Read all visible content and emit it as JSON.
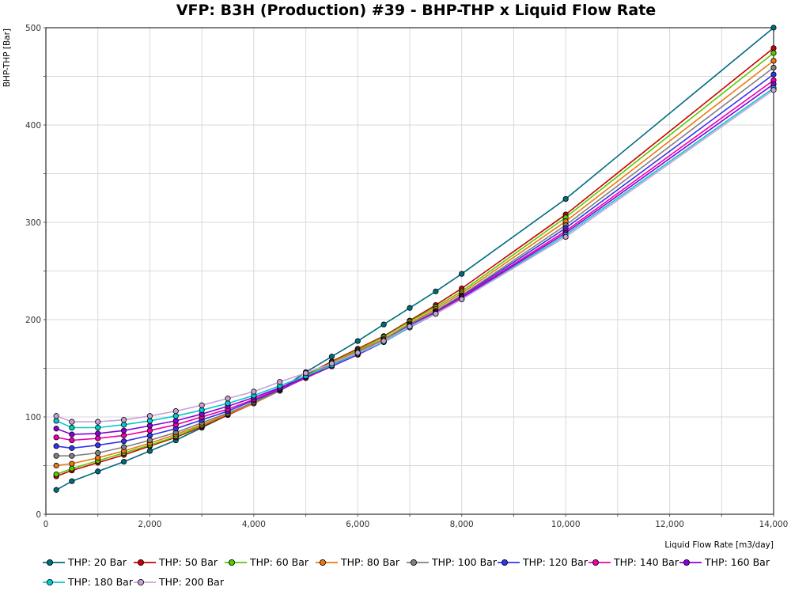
{
  "chart_data": {
    "type": "line",
    "title": "VFP: B3H (Production) #39 - BHP-THP x Liquid Flow Rate",
    "xlabel": "Liquid Flow Rate [m3/day]",
    "ylabel": "BHP-THP [Bar]",
    "xlim": [
      0,
      14000
    ],
    "ylim": [
      0,
      500
    ],
    "xticks": [
      0,
      2000,
      4000,
      6000,
      8000,
      10000,
      12000,
      14000
    ],
    "xtick_labels": [
      "0",
      "2,000",
      "4,000",
      "6,000",
      "8,000",
      "10,000",
      "12,000",
      "14,000"
    ],
    "yticks": [
      0,
      100,
      200,
      300,
      400,
      500
    ],
    "ytick_labels": [
      "0",
      "100",
      "200",
      "300",
      "400",
      "500"
    ],
    "grid": true,
    "legend_position": "bottom",
    "x": [
      200,
      500,
      1000,
      1500,
      2000,
      2500,
      3000,
      3500,
      4000,
      4500,
      5000,
      5500,
      6000,
      6500,
      7000,
      7500,
      8000,
      10000,
      14000
    ],
    "series": [
      {
        "name": "THP: 20 Bar",
        "color": "#006b80",
        "values": [
          25,
          34,
          44,
          54,
          65,
          76,
          89,
          102,
          115,
          128,
          146,
          162,
          178,
          195,
          212,
          229,
          247,
          324,
          500
        ]
      },
      {
        "name": "THP: 50 Bar",
        "color": "#cc0000",
        "values": [
          39,
          45,
          53,
          61,
          70,
          79,
          90,
          102,
          114,
          127,
          143,
          157,
          170,
          183,
          199,
          215,
          232,
          308,
          479
        ]
      },
      {
        "name": "THP: 60 Bar",
        "color": "#55cc00",
        "values": [
          41,
          47,
          55,
          63,
          71,
          80,
          91,
          103,
          114,
          127,
          142,
          156,
          169,
          182,
          198,
          213,
          229,
          305,
          474
        ]
      },
      {
        "name": "THP: 80 Bar",
        "color": "#ee7711",
        "values": [
          50,
          52,
          58,
          65,
          73,
          82,
          92,
          103,
          114,
          127,
          141,
          155,
          168,
          180,
          196,
          211,
          227,
          301,
          466
        ]
      },
      {
        "name": "THP: 100 Bar",
        "color": "#808080",
        "values": [
          60,
          60,
          63,
          69,
          76,
          84,
          94,
          104,
          115,
          127,
          141,
          154,
          167,
          179,
          195,
          209,
          225,
          297,
          459
        ]
      },
      {
        "name": "THP: 120 Bar",
        "color": "#3333ee",
        "values": [
          70,
          68,
          71,
          75,
          81,
          88,
          97,
          106,
          117,
          128,
          140,
          153,
          166,
          178,
          194,
          208,
          224,
          294,
          452
        ]
      },
      {
        "name": "THP: 140 Bar",
        "color": "#ee00aa",
        "values": [
          79,
          76,
          78,
          81,
          86,
          92,
          100,
          108,
          118,
          129,
          140,
          152,
          164,
          177,
          193,
          207,
          223,
          291,
          446
        ]
      },
      {
        "name": "THP: 160 Bar",
        "color": "#8800dd",
        "values": [
          88,
          82,
          83,
          86,
          91,
          96,
          103,
          111,
          120,
          130,
          141,
          152,
          164,
          177,
          192,
          206,
          222,
          289,
          442
        ]
      },
      {
        "name": "THP: 180 Bar",
        "color": "#00cccc",
        "values": [
          96,
          89,
          89,
          92,
          96,
          101,
          107,
          114,
          122,
          132,
          142,
          153,
          165,
          177,
          192,
          206,
          221,
          287,
          438
        ]
      },
      {
        "name": "THP: 200 Bar",
        "color": "#c8a0d8",
        "values": [
          101,
          95,
          95,
          97,
          101,
          106,
          112,
          119,
          126,
          136,
          145,
          155,
          166,
          178,
          193,
          206,
          221,
          285,
          436
        ]
      }
    ]
  }
}
